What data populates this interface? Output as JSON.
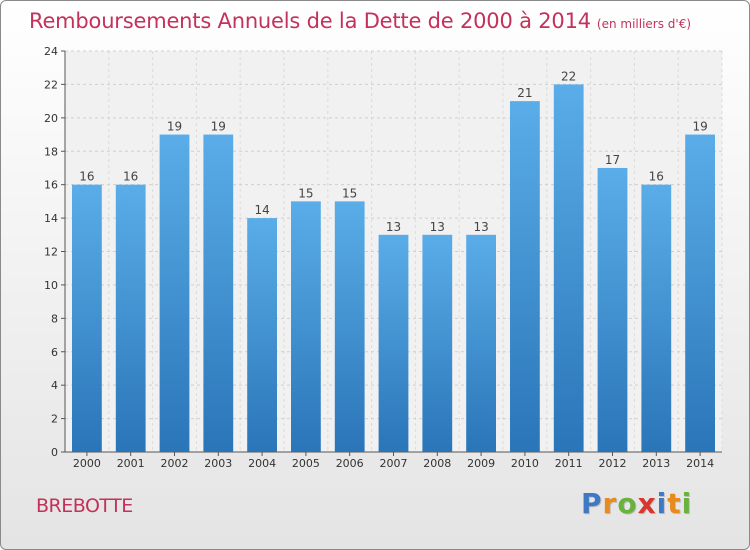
{
  "chart_data": {
    "type": "bar",
    "title": "Remboursements Annuels de la Dette de 2000 à 2014",
    "unit_label": "(en milliers d'€)",
    "categories": [
      "2000",
      "2001",
      "2002",
      "2003",
      "2004",
      "2005",
      "2006",
      "2007",
      "2008",
      "2009",
      "2010",
      "2011",
      "2012",
      "2013",
      "2014"
    ],
    "values": [
      16,
      16,
      19,
      19,
      14,
      15,
      15,
      13,
      13,
      13,
      21,
      22,
      17,
      16,
      19
    ],
    "yticks": [
      0,
      2,
      4,
      6,
      8,
      10,
      12,
      14,
      16,
      18,
      20,
      22,
      24
    ],
    "ylim": [
      0,
      24
    ],
    "grid": true,
    "bar_color_top": "#5aade8",
    "bar_color_bottom": "#2a75b8"
  },
  "commune_name": "BREBOTTE",
  "logo": {
    "letters": [
      "P",
      "r",
      "o",
      "x",
      "i",
      "t",
      "i"
    ],
    "colors": [
      "#3f78c4",
      "#e98a1c",
      "#6ab23e",
      "#d7352e",
      "#3f78c4",
      "#e98a1c",
      "#6ab23e"
    ]
  }
}
